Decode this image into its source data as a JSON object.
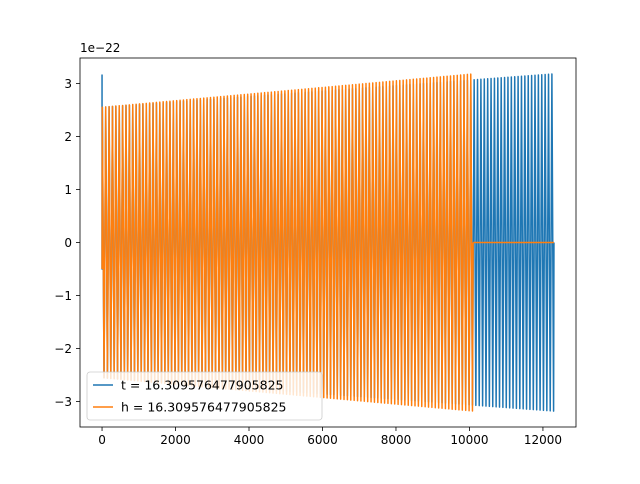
{
  "chart_data": {
    "type": "line",
    "title": "",
    "xlabel": "",
    "ylabel": "",
    "y_scale_label": "1e−22",
    "xlim": [
      -600,
      12900
    ],
    "ylim": [
      -3.48,
      3.48
    ],
    "x_ticks": [
      0,
      2000,
      4000,
      6000,
      8000,
      10000,
      12000
    ],
    "x_tick_labels": [
      "0",
      "2000",
      "4000",
      "6000",
      "8000",
      "10000",
      "12000"
    ],
    "y_ticks": [
      3,
      2,
      1,
      0,
      -1,
      -2,
      -3
    ],
    "y_tick_labels": [
      "3",
      "2",
      "1",
      "0",
      "−1",
      "−2",
      "−3"
    ],
    "grid": false,
    "legend_position": "lower-left",
    "series": [
      {
        "name": "t = 16.309576477905825",
        "color": "#1f77b4",
        "x_range": [
          0,
          12300
        ],
        "amplitude_start": 2.55,
        "amplitude_end": 3.18,
        "initial_spike": 3.17,
        "oscillation_period": 92
      },
      {
        "name": "h = 16.309576477905825",
        "color": "#ff7f0e",
        "x_range": [
          0,
          10100
        ],
        "amplitude_start": 2.55,
        "amplitude_end": 3.18,
        "oscillation_period": 92,
        "flat_after": {
          "x_range": [
            10100,
            12300
          ],
          "y": 0
        }
      }
    ]
  }
}
